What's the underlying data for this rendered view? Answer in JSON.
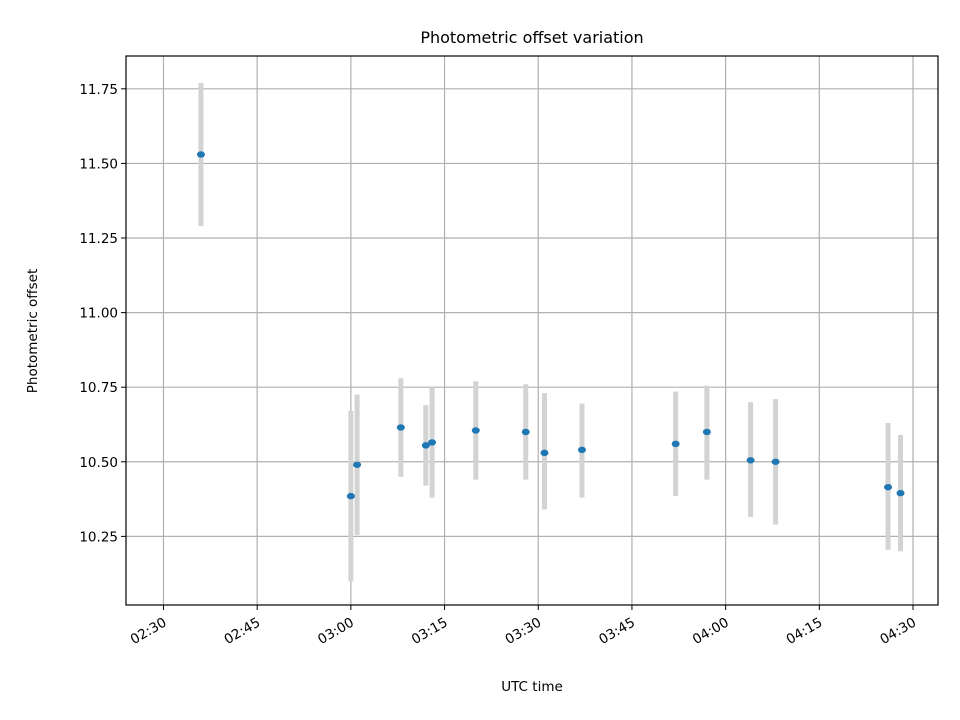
{
  "chart_data": {
    "type": "scatter",
    "title": "Photometric offset variation",
    "xlabel": "UTC time",
    "ylabel": "Photometric offset",
    "x_is_time": true,
    "xlim": [
      "02:24",
      "04:34"
    ],
    "ylim": [
      10.02,
      11.86
    ],
    "grid": true,
    "error_bars": true,
    "colors": {
      "points": "#1f77b4",
      "error_bars": "#d3d3d3",
      "grid": "#b0b0b0"
    },
    "x_ticks": [
      "02:30",
      "02:45",
      "03:00",
      "03:15",
      "03:30",
      "03:45",
      "04:00",
      "04:15",
      "04:30"
    ],
    "y_ticks": [
      "10.25",
      "10.50",
      "10.75",
      "11.00",
      "11.25",
      "11.50",
      "11.75"
    ],
    "points": [
      {
        "x": "02:36",
        "y": 11.53,
        "lo": 11.29,
        "hi": 11.77
      },
      {
        "x": "03:00",
        "y": 10.385,
        "lo": 10.1,
        "hi": 10.67
      },
      {
        "x": "03:01",
        "y": 10.49,
        "lo": 10.255,
        "hi": 10.725
      },
      {
        "x": "03:08",
        "y": 10.615,
        "lo": 10.45,
        "hi": 10.78
      },
      {
        "x": "03:12",
        "y": 10.555,
        "lo": 10.42,
        "hi": 10.69
      },
      {
        "x": "03:13",
        "y": 10.565,
        "lo": 10.38,
        "hi": 10.75
      },
      {
        "x": "03:20",
        "y": 10.605,
        "lo": 10.44,
        "hi": 10.77
      },
      {
        "x": "03:28",
        "y": 10.6,
        "lo": 10.44,
        "hi": 10.76
      },
      {
        "x": "03:31",
        "y": 10.53,
        "lo": 10.34,
        "hi": 10.73
      },
      {
        "x": "03:37",
        "y": 10.54,
        "lo": 10.38,
        "hi": 10.695
      },
      {
        "x": "03:52",
        "y": 10.56,
        "lo": 10.385,
        "hi": 10.735
      },
      {
        "x": "03:57",
        "y": 10.6,
        "lo": 10.44,
        "hi": 10.755
      },
      {
        "x": "04:04",
        "y": 10.505,
        "lo": 10.315,
        "hi": 10.7
      },
      {
        "x": "04:08",
        "y": 10.5,
        "lo": 10.29,
        "hi": 10.71
      },
      {
        "x": "04:26",
        "y": 10.415,
        "lo": 10.205,
        "hi": 10.63
      },
      {
        "x": "04:28",
        "y": 10.395,
        "lo": 10.2,
        "hi": 10.59
      }
    ]
  }
}
